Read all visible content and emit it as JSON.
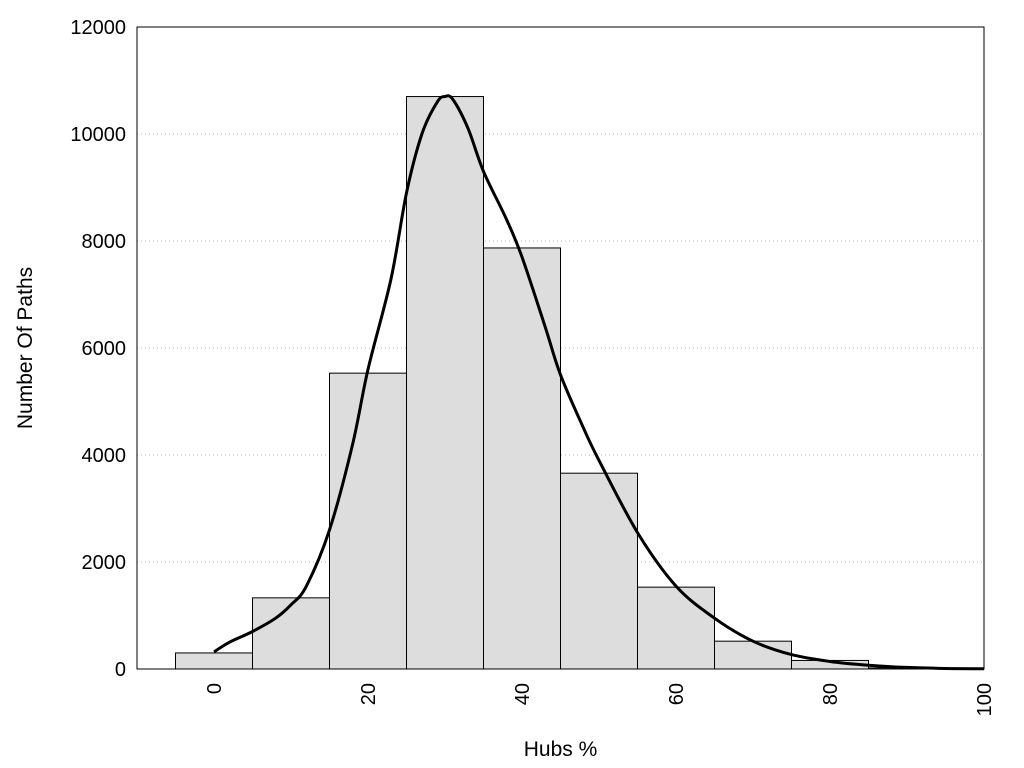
{
  "chart_data": {
    "type": "bar",
    "title": "",
    "xlabel": "Hubs %",
    "ylabel": "Number Of Paths",
    "xlim": [
      -10,
      100
    ],
    "ylim": [
      0,
      12000
    ],
    "x_ticks": [
      "0",
      "20",
      "40",
      "60",
      "80",
      "100"
    ],
    "y_ticks": [
      "0",
      "2000",
      "4000",
      "6000",
      "8000",
      "10000",
      "12000"
    ],
    "grid": "horizontal dotted",
    "legend": "none",
    "bar_width": 10,
    "bins": [
      {
        "center": 0,
        "value": 300
      },
      {
        "center": 10,
        "value": 1330
      },
      {
        "center": 20,
        "value": 5530
      },
      {
        "center": 30,
        "value": 10700
      },
      {
        "center": 40,
        "value": 7870
      },
      {
        "center": 50,
        "value": 3660
      },
      {
        "center": 60,
        "value": 1530
      },
      {
        "center": 70,
        "value": 520
      },
      {
        "center": 80,
        "value": 160
      },
      {
        "center": 90,
        "value": 20
      }
    ],
    "density_curve": {
      "x": [
        0,
        2,
        5,
        8,
        10,
        12,
        15,
        18,
        20,
        23,
        25,
        27,
        29,
        30,
        31,
        33,
        35,
        38,
        40,
        43,
        45,
        48,
        50,
        55,
        60,
        65,
        70,
        75,
        80,
        85,
        90,
        95,
        100
      ],
      "y": [
        320,
        500,
        700,
        950,
        1200,
        1550,
        2600,
        4200,
        5600,
        7300,
        8900,
        10000,
        10600,
        10700,
        10650,
        10100,
        9300,
        8400,
        7700,
        6400,
        5500,
        4500,
        3900,
        2550,
        1550,
        950,
        520,
        270,
        140,
        70,
        30,
        10,
        5
      ],
      "color": "#000000"
    },
    "bar_fill": "#dddddd",
    "bar_stroke": "#000000"
  }
}
